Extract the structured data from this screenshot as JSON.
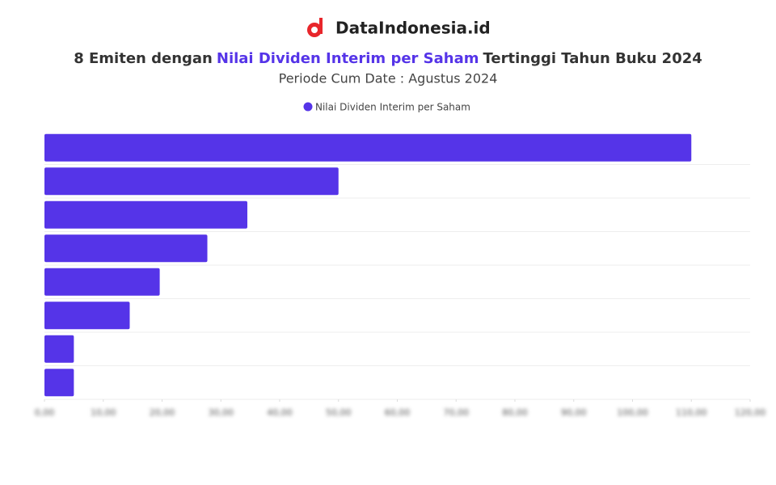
{
  "brand": "DataIndonesia.id",
  "chart_data": {
    "type": "bar",
    "orientation": "horizontal",
    "title": [
      "8 Emiten dengan",
      "Nilai Dividen Interim per Saham",
      "Tertinggi Tahun Buku 2024"
    ],
    "subtitle": "Periode Cum Date : Agustus 2024",
    "categories": [
      null,
      null,
      null,
      null,
      null,
      null,
      null,
      null
    ],
    "series": [
      {
        "name": "Nilai Dividen Interim per Saham",
        "color": "#5534e8",
        "values": [
          110,
          50,
          34.5,
          27.7,
          19.6,
          14.5,
          5,
          5
        ]
      }
    ],
    "xlim": [
      0,
      120
    ],
    "xticks": [
      {
        "value": 0,
        "label": "0,00"
      },
      {
        "value": 10,
        "label": "10,00"
      },
      {
        "value": 20,
        "label": "20,00"
      },
      {
        "value": 30,
        "label": "30,00"
      },
      {
        "value": 40,
        "label": "40,00"
      },
      {
        "value": 50,
        "label": "50,00"
      },
      {
        "value": 60,
        "label": "60,00"
      },
      {
        "value": 70,
        "label": "70,00"
      },
      {
        "value": 80,
        "label": "80,00"
      },
      {
        "value": 90,
        "label": "90,00"
      },
      {
        "value": 100,
        "label": "100,00"
      },
      {
        "value": 110,
        "label": "110,00"
      },
      {
        "value": 120,
        "label": "120,00"
      }
    ],
    "grid": true,
    "legend": "top"
  }
}
